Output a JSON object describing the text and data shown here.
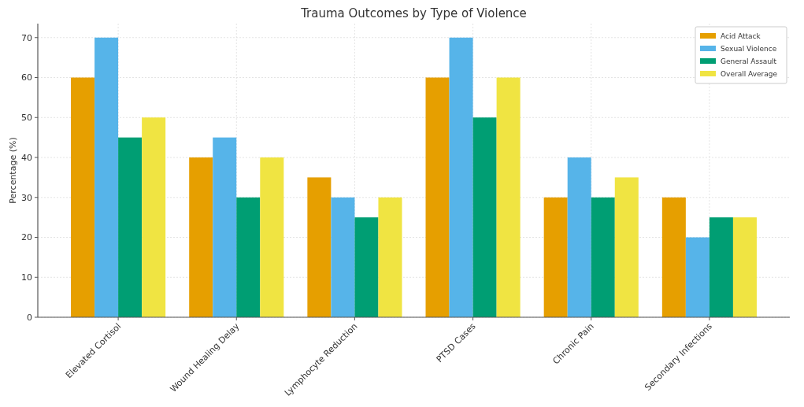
{
  "chart_data": {
    "type": "bar",
    "title": "Trauma Outcomes by Type of Violence",
    "ylabel": "Percentage (%)",
    "categories": [
      "Elevated Cortisol",
      "Wound Healing Delay",
      "Lymphocyte Reduction",
      "PTSD Cases",
      "Chronic Pain",
      "Secondary Infections"
    ],
    "series": [
      {
        "name": "Acid Attack",
        "color": "#e69f00",
        "values": [
          60,
          40,
          35,
          60,
          30,
          30
        ]
      },
      {
        "name": "Sexual Violence",
        "color": "#56b4e9",
        "values": [
          70,
          45,
          30,
          70,
          40,
          20
        ]
      },
      {
        "name": "General Assault",
        "color": "#009e73",
        "values": [
          45,
          30,
          25,
          50,
          30,
          25
        ]
      },
      {
        "name": "Overall Average",
        "color": "#f0e442",
        "values": [
          50,
          40,
          30,
          60,
          35,
          25
        ]
      }
    ],
    "ylim": [
      0,
      73.5
    ],
    "yticks": [
      0,
      10,
      20,
      30,
      40,
      50,
      60,
      70
    ],
    "grid": true,
    "legend": "top right"
  }
}
